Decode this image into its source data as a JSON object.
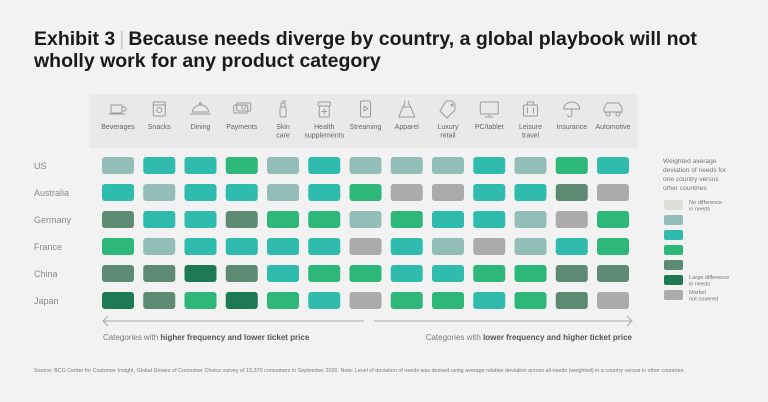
{
  "title": {
    "exhibit": "Exhibit 3",
    "separator": "|",
    "text": "Because needs diverge by country, a global playbook will not wholly work for any product category"
  },
  "chart_data": {
    "type": "heatmap",
    "categories": [
      {
        "label": [
          "Beverages"
        ],
        "icon": "cup-icon"
      },
      {
        "label": [
          "Snacks"
        ],
        "icon": "snack-bag-icon"
      },
      {
        "label": [
          "Dining"
        ],
        "icon": "cloche-icon"
      },
      {
        "label": [
          "Payments"
        ],
        "icon": "money-icon"
      },
      {
        "label": [
          "Skin",
          "care"
        ],
        "icon": "lotion-bottle-icon"
      },
      {
        "label": [
          "Health",
          "supplements"
        ],
        "icon": "pill-bottle-icon"
      },
      {
        "label": [
          "Streaming"
        ],
        "icon": "phone-play-icon"
      },
      {
        "label": [
          "Apparel"
        ],
        "icon": "dress-icon"
      },
      {
        "label": [
          "Luxury",
          "retail"
        ],
        "icon": "price-tag-icon"
      },
      {
        "label": [
          "PC/tablet"
        ],
        "icon": "monitor-icon"
      },
      {
        "label": [
          "Leisure",
          "travel"
        ],
        "icon": "luggage-icon"
      },
      {
        "label": [
          "Insurance"
        ],
        "icon": "umbrella-icon"
      },
      {
        "label": [
          "Automotive"
        ],
        "icon": "car-icon"
      }
    ],
    "countries": [
      "US",
      "Australia",
      "Germany",
      "France",
      "China",
      "Japan"
    ],
    "values": [
      [
        2,
        3,
        3,
        4,
        2,
        3,
        2,
        2,
        2,
        3,
        2,
        4,
        3
      ],
      [
        3,
        2,
        3,
        3,
        2,
        3,
        4,
        7,
        7,
        3,
        3,
        5,
        7
      ],
      [
        5,
        3,
        3,
        5,
        4,
        4,
        2,
        4,
        3,
        3,
        2,
        7,
        4
      ],
      [
        4,
        2,
        3,
        3,
        3,
        3,
        7,
        3,
        2,
        7,
        2,
        3,
        4
      ],
      [
        5,
        5,
        6,
        5,
        3,
        4,
        4,
        3,
        3,
        4,
        4,
        5,
        5
      ],
      [
        6,
        5,
        4,
        6,
        4,
        3,
        7,
        4,
        4,
        3,
        4,
        5,
        7
      ]
    ],
    "legend": {
      "title": [
        "Weighted average",
        "deviation of needs for",
        "one country versus",
        "other countries"
      ],
      "items": [
        {
          "level": 1,
          "color": "#dcdfd8",
          "label": [
            "No difference",
            "in needs"
          ]
        },
        {
          "level": 2,
          "color": "#93bdb8",
          "label": []
        },
        {
          "level": 3,
          "color": "#2fbbad",
          "label": []
        },
        {
          "level": 4,
          "color": "#2db87a",
          "label": []
        },
        {
          "level": 5,
          "color": "#5c8a73",
          "label": []
        },
        {
          "level": 6,
          "color": "#1e7a55",
          "label": [
            "Large difference",
            "in needs"
          ]
        },
        {
          "level": 7,
          "color": "#ababab",
          "label": [
            "Market",
            "not covered"
          ]
        }
      ]
    },
    "arrows": {
      "left": {
        "prefix": "Categories with ",
        "bold": "higher frequency and lower ticket price"
      },
      "right": {
        "prefix": "Categories with ",
        "bold": "lower frequency and higher ticket price"
      }
    }
  },
  "colors": {
    "text_dark": "#1a1a1a",
    "text_grey": "#7b7b7b",
    "arrow": "#a8a8a8",
    "header_panel": "#e9e9e9"
  },
  "footnote": "Source: BCG Center for Customer Insight, Global Drivers of Consumer Choice survey of 15,370 consumers in September 2020. Note: Level of deviation of needs was derived using average relative deviation across all needs (weighted) in a country versus in other countries."
}
